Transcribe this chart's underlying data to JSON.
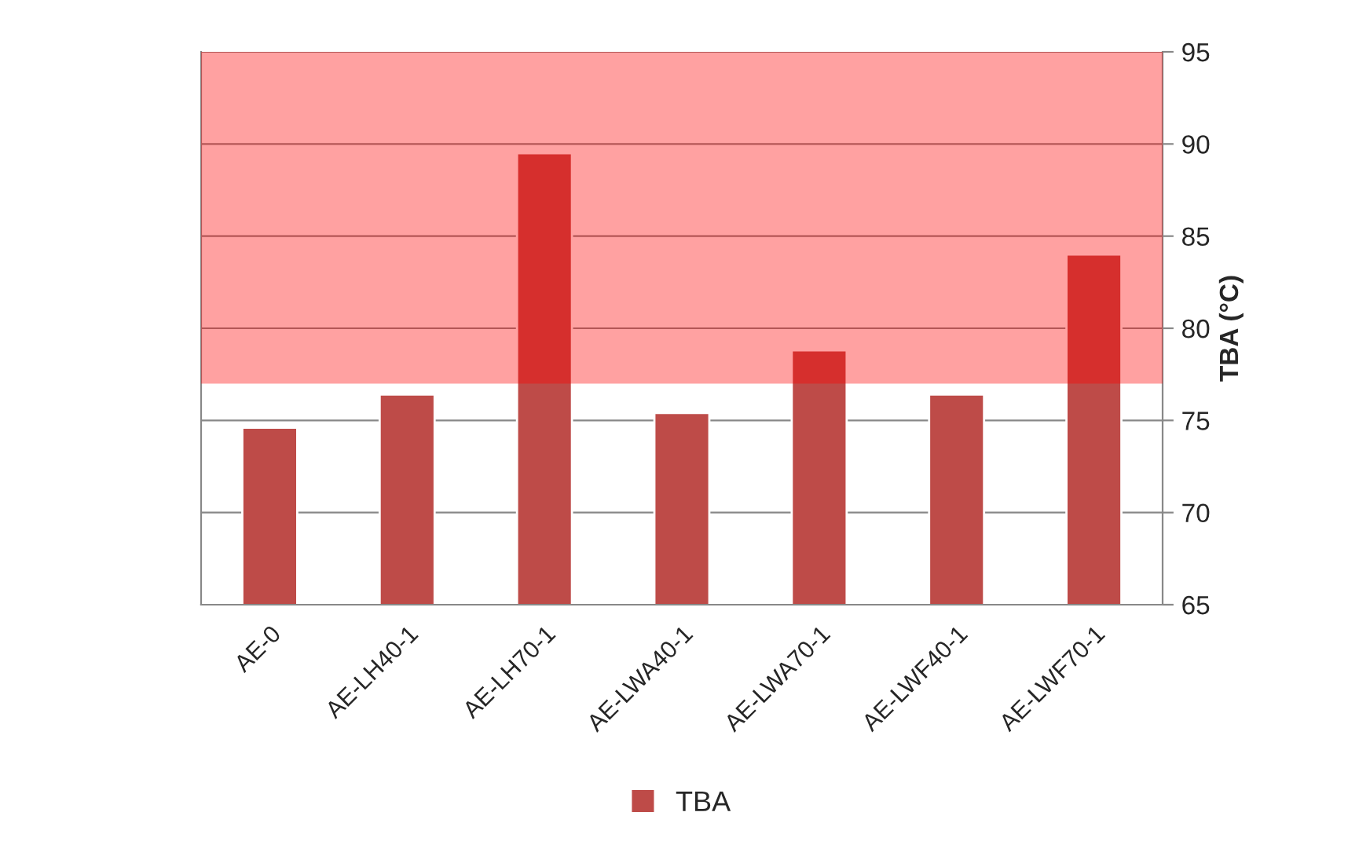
{
  "chart_data": {
    "type": "bar",
    "ylabel": "TBA (°C)",
    "categories": [
      "AE-0",
      "AE-LH40-1",
      "AE-LH70-1",
      "AE-LWA40-1",
      "AE-LWA70-1",
      "AE-LWF40-1",
      "AE-LWF70-1"
    ],
    "series": [
      {
        "name": "TBA",
        "color": "#be4b48",
        "values": [
          74.6,
          76.4,
          89.5,
          75.4,
          78.8,
          76.4,
          84.0
        ]
      }
    ],
    "ylim": [
      65,
      95
    ],
    "yticks": [
      65,
      70,
      75,
      80,
      85,
      90,
      95
    ],
    "grid": "y",
    "legend": "bottom",
    "bands": [
      {
        "axis": "y",
        "from": 77,
        "to": 95,
        "color": "#ff0000"
      }
    ]
  }
}
